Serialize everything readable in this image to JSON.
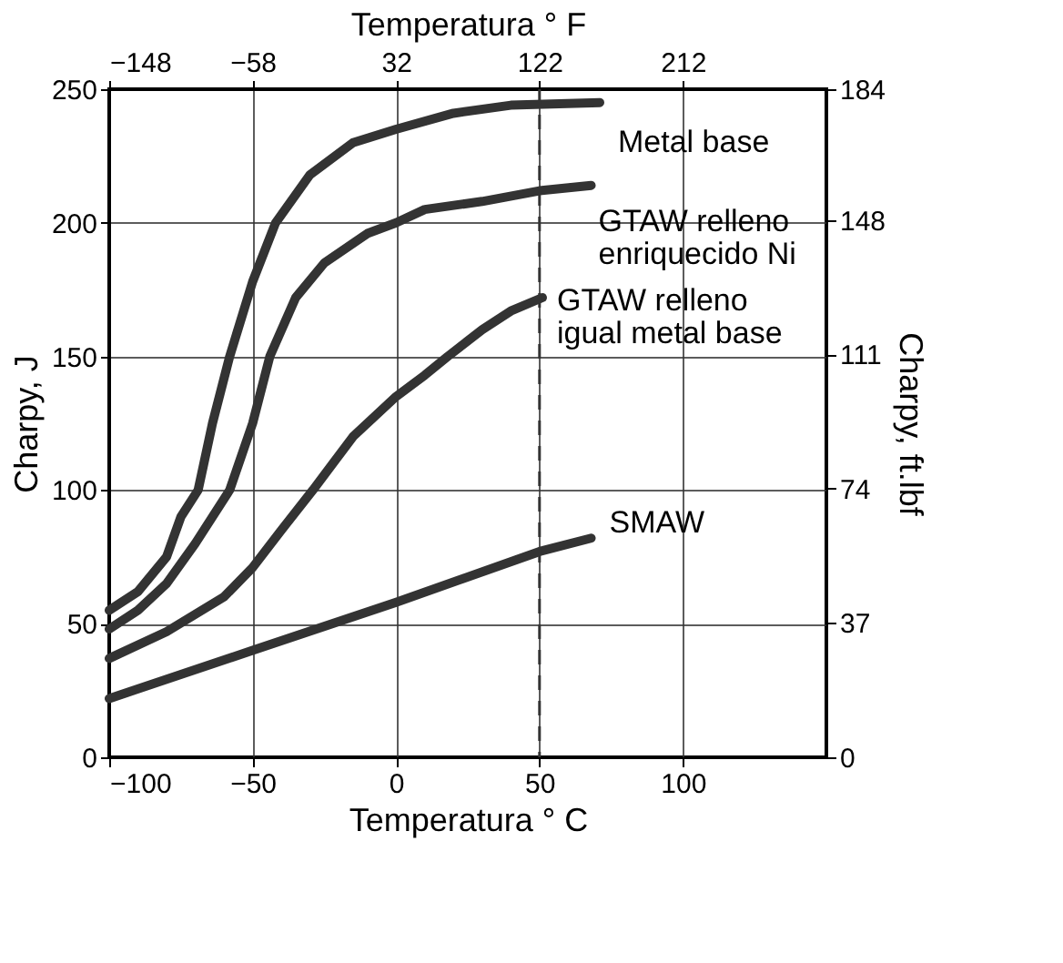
{
  "chart_data": {
    "type": "line",
    "xlabel": "Temperatura  ° C",
    "x2label": "Temperatura  ° F",
    "ylabel": "Charpy,  J",
    "y2label": "Charpy,  ft.lbf",
    "xlim": [
      -100,
      150
    ],
    "xticks": [
      -100,
      -50,
      0,
      50,
      100
    ],
    "x2lim": [
      -148,
      302
    ],
    "x2ticks": [
      -148,
      -58,
      32,
      122,
      212
    ],
    "ylim": [
      0,
      250
    ],
    "yticks": [
      0,
      50,
      100,
      150,
      200,
      250
    ],
    "y2lim": [
      0,
      184
    ],
    "y2ticks": [
      0,
      37,
      74,
      111,
      148,
      184
    ],
    "grid": true,
    "legend": false,
    "marker": "none",
    "line_style": "solid",
    "ref_lines": [
      {
        "axis": "x",
        "value": 50,
        "line_style": "dashed",
        "color": "#333333"
      }
    ],
    "series": [
      {
        "name": "Metal base",
        "color": "#333333",
        "x": [
          -100,
          -90,
          -80,
          -75,
          -69,
          -64,
          -58,
          -50,
          -42,
          -30,
          -15,
          0,
          20,
          40,
          71
        ],
        "values": [
          55,
          62,
          75,
          90,
          100,
          125,
          150,
          178,
          200,
          218,
          230,
          235,
          241,
          244,
          245
        ]
      },
      {
        "name": "GTAW relleno enriquecido Ni",
        "color": "#333333",
        "x": [
          -100,
          -90,
          -80,
          -70,
          -58,
          -50,
          -44,
          -35,
          -25,
          -10,
          0,
          10,
          30,
          50,
          68
        ],
        "values": [
          48,
          55,
          65,
          80,
          100,
          125,
          150,
          172,
          185,
          196,
          200,
          205,
          208,
          212,
          214
        ]
      },
      {
        "name": "GTAW relleno igual metal base",
        "color": "#333333",
        "x": [
          -100,
          -80,
          -60,
          -50,
          -40,
          -29,
          -15,
          0,
          10,
          18,
          30,
          40,
          51
        ],
        "values": [
          37,
          47,
          60,
          71,
          85,
          100,
          120,
          135,
          143,
          150,
          160,
          167,
          172
        ]
      },
      {
        "name": "SMAW",
        "color": "#333333",
        "x": [
          -100,
          -50,
          0,
          50,
          68
        ],
        "values": [
          22,
          40,
          58,
          77,
          82
        ]
      }
    ]
  }
}
